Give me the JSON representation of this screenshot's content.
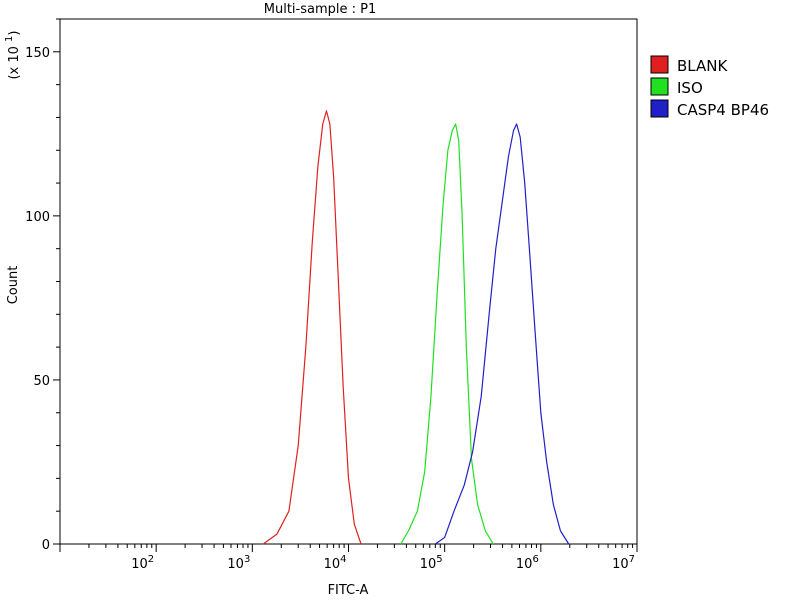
{
  "chart_data": {
    "type": "line",
    "title": "Multi-sample : P1",
    "xlabel": "FITC-A",
    "ylabel": "Count",
    "y_multiplier_label": "(x 10^1)",
    "x_scale": "log",
    "xlim": [
      10,
      10000000
    ],
    "ylim": [
      0,
      160
    ],
    "x_ticks": [
      {
        "value": 100,
        "label": "10^2"
      },
      {
        "value": 1000,
        "label": "10^3"
      },
      {
        "value": 10000,
        "label": "10^4"
      },
      {
        "value": 100000,
        "label": "10^5"
      },
      {
        "value": 1000000,
        "label": "10^6"
      },
      {
        "value": 10000000,
        "label": "10^7"
      }
    ],
    "y_ticks": [
      0,
      50,
      100,
      150
    ],
    "legend_position": "right",
    "grid": false,
    "series": [
      {
        "name": "BLANK",
        "color": "#e02020",
        "points": [
          [
            1300,
            0
          ],
          [
            1800,
            3
          ],
          [
            2400,
            10
          ],
          [
            3000,
            30
          ],
          [
            3600,
            60
          ],
          [
            4200,
            92
          ],
          [
            4800,
            115
          ],
          [
            5400,
            128
          ],
          [
            5900,
            132
          ],
          [
            6400,
            128
          ],
          [
            7000,
            112
          ],
          [
            7800,
            82
          ],
          [
            8800,
            48
          ],
          [
            10000,
            20
          ],
          [
            11500,
            6
          ],
          [
            13500,
            0
          ]
        ]
      },
      {
        "name": "ISO",
        "color": "#20e020",
        "points": [
          [
            35000,
            0
          ],
          [
            42000,
            4
          ],
          [
            52000,
            10
          ],
          [
            62000,
            22
          ],
          [
            72000,
            45
          ],
          [
            83000,
            75
          ],
          [
            96000,
            103
          ],
          [
            108000,
            120
          ],
          [
            120000,
            126
          ],
          [
            130000,
            128
          ],
          [
            140000,
            123
          ],
          [
            152000,
            100
          ],
          [
            168000,
            60
          ],
          [
            190000,
            26
          ],
          [
            220000,
            12
          ],
          [
            265000,
            4
          ],
          [
            320000,
            0
          ]
        ]
      },
      {
        "name": "CASP4 BP46",
        "color": "#2020c8",
        "points": [
          [
            80000,
            0
          ],
          [
            100000,
            2
          ],
          [
            125000,
            10
          ],
          [
            160000,
            18
          ],
          [
            195000,
            28
          ],
          [
            240000,
            45
          ],
          [
            290000,
            70
          ],
          [
            340000,
            90
          ],
          [
            400000,
            105
          ],
          [
            460000,
            118
          ],
          [
            520000,
            126
          ],
          [
            560000,
            128
          ],
          [
            610000,
            124
          ],
          [
            680000,
            110
          ],
          [
            760000,
            90
          ],
          [
            870000,
            65
          ],
          [
            1000000,
            40
          ],
          [
            1150000,
            25
          ],
          [
            1350000,
            12
          ],
          [
            1600000,
            4
          ],
          [
            1950000,
            0
          ]
        ]
      }
    ]
  }
}
